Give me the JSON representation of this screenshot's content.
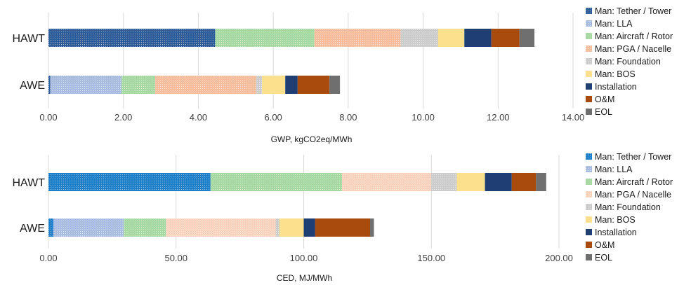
{
  "chart_data": [
    {
      "type": "bar",
      "orientation": "horizontal",
      "stacked": true,
      "categories": [
        "HAWT",
        "AWE"
      ],
      "xlabel": "GWP, kgCO2eq/MWh",
      "xlim": [
        0,
        14
      ],
      "xticks": [
        "0.00",
        "2.00",
        "4.00",
        "6.00",
        "8.00",
        "10.00",
        "12.00",
        "14.00"
      ],
      "grid": "vertical",
      "legend": "right",
      "series": [
        {
          "name": "Man: Tether / Tower",
          "color": "#2e5c99",
          "pattern": "dots",
          "values": [
            4.45,
            0.05
          ]
        },
        {
          "name": "Man: LLA",
          "color": "#a9bde3",
          "pattern": "dots",
          "values": [
            0,
            1.9
          ]
        },
        {
          "name": "Man: Aircraft / Rotor",
          "color": "#a6d9a2",
          "pattern": "dots",
          "values": [
            2.65,
            0.9
          ]
        },
        {
          "name": "Man: PGA / Nacelle",
          "color": "#f5bd9c",
          "pattern": "dots",
          "values": [
            2.3,
            2.7
          ]
        },
        {
          "name": "Man: Foundation",
          "color": "#cccccc",
          "pattern": "dots",
          "values": [
            1.0,
            0.15
          ]
        },
        {
          "name": "Man: BOS",
          "color": "#fde08d",
          "pattern": "none",
          "values": [
            0.7,
            0.62
          ]
        },
        {
          "name": "Installation",
          "color": "#1f3f73",
          "pattern": "none",
          "values": [
            0.72,
            0.33
          ]
        },
        {
          "name": "O&M",
          "color": "#a84b0c",
          "pattern": "none",
          "values": [
            0.75,
            0.85
          ]
        },
        {
          "name": "EOL",
          "color": "#6f6f6f",
          "pattern": "none",
          "values": [
            0.4,
            0.28
          ]
        }
      ]
    },
    {
      "type": "bar",
      "orientation": "horizontal",
      "stacked": true,
      "categories": [
        "HAWT",
        "AWE"
      ],
      "xlabel": "CED, MJ/MWh",
      "xlim": [
        0,
        200
      ],
      "xticks": [
        "0.00",
        "50.00",
        "100.00",
        "150.00",
        "200.00"
      ],
      "grid": "vertical",
      "legend": "right",
      "series": [
        {
          "name": "Man: Tether / Tower",
          "color": "#1f7fc8",
          "pattern": "dots",
          "values": [
            63.5,
            2.0
          ]
        },
        {
          "name": "Man: LLA",
          "color": "#a9bde3",
          "pattern": "dots",
          "values": [
            0,
            27.5
          ]
        },
        {
          "name": "Man: Aircraft / Rotor",
          "color": "#a6d9a2",
          "pattern": "dots",
          "values": [
            51.5,
            16.5
          ]
        },
        {
          "name": "Man: PGA / Nacelle",
          "color": "#f9d2bd",
          "pattern": "dots",
          "values": [
            35.0,
            43.0
          ]
        },
        {
          "name": "Man: Foundation",
          "color": "#cccccc",
          "pattern": "dots",
          "values": [
            10.0,
            1.5
          ]
        },
        {
          "name": "Man: BOS",
          "color": "#fde08d",
          "pattern": "none",
          "values": [
            11.0,
            9.5
          ]
        },
        {
          "name": "Installation",
          "color": "#1f3f73",
          "pattern": "none",
          "values": [
            10.5,
            4.5
          ]
        },
        {
          "name": "O&M",
          "color": "#a84b0c",
          "pattern": "none",
          "values": [
            9.5,
            21.5
          ]
        },
        {
          "name": "EOL",
          "color": "#6f6f6f",
          "pattern": "none",
          "values": [
            4.0,
            1.5
          ]
        }
      ]
    }
  ]
}
